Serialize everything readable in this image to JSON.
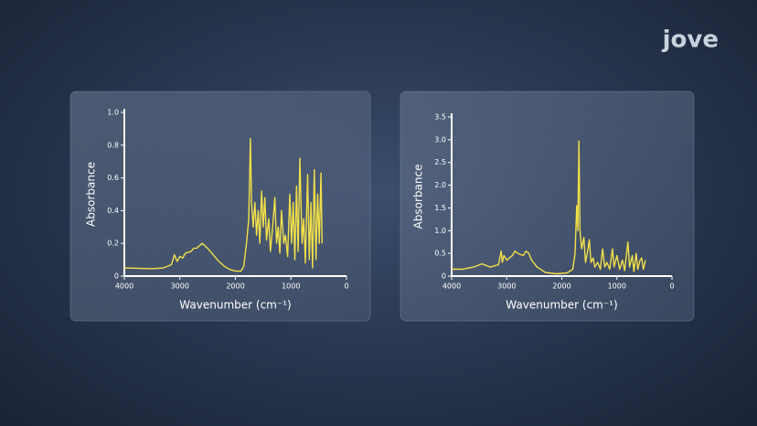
{
  "brand": "jove",
  "chart_data": [
    {
      "type": "line",
      "xlabel": "Wavenumber (cm⁻¹)",
      "ylabel": "Absorbance",
      "color": "#f2e04a",
      "xlim": [
        4000,
        0
      ],
      "xticks": [
        4000,
        3000,
        2000,
        1000,
        0
      ],
      "ylim": [
        0,
        1
      ],
      "yticks": [
        0,
        0.2,
        0.4,
        0.6,
        0.8,
        {
          "value": 1,
          "label": "1.0"
        }
      ],
      "x": [
        4000,
        3500,
        3300,
        3150,
        3100,
        3050,
        3000,
        2950,
        2900,
        2800,
        2750,
        2700,
        2600,
        2500,
        2400,
        2300,
        2200,
        2100,
        2000,
        1900,
        1850,
        1800,
        1760,
        1730,
        1710,
        1680,
        1650,
        1620,
        1590,
        1560,
        1530,
        1500,
        1470,
        1440,
        1400,
        1370,
        1330,
        1290,
        1260,
        1230,
        1200,
        1170,
        1130,
        1100,
        1060,
        1020,
        990,
        960,
        930,
        900,
        870,
        840,
        800,
        770,
        740,
        700,
        670,
        640,
        610,
        580,
        550,
        520,
        490,
        460,
        440
      ],
      "values": [
        0.05,
        0.045,
        0.05,
        0.07,
        0.13,
        0.09,
        0.12,
        0.11,
        0.14,
        0.15,
        0.17,
        0.17,
        0.2,
        0.17,
        0.13,
        0.09,
        0.06,
        0.04,
        0.03,
        0.03,
        0.06,
        0.2,
        0.35,
        0.84,
        0.45,
        0.3,
        0.45,
        0.25,
        0.4,
        0.2,
        0.52,
        0.3,
        0.48,
        0.22,
        0.35,
        0.15,
        0.3,
        0.48,
        0.2,
        0.3,
        0.14,
        0.4,
        0.2,
        0.25,
        0.12,
        0.5,
        0.2,
        0.45,
        0.1,
        0.55,
        0.15,
        0.72,
        0.2,
        0.35,
        0.08,
        0.62,
        0.1,
        0.45,
        0.05,
        0.65,
        0.1,
        0.5,
        0.2,
        0.63,
        0.2
      ]
    },
    {
      "type": "line",
      "xlabel": "Wavenumber (cm⁻¹)",
      "ylabel": "Absorbance",
      "color": "#f2e04a",
      "xlim": [
        4000,
        0
      ],
      "xticks": [
        4000,
        3000,
        2000,
        1000,
        0
      ],
      "ylim": [
        0,
        3.5
      ],
      "yticks": [
        0,
        0.5,
        {
          "value": 1,
          "label": "1.0"
        },
        1.5,
        {
          "value": 2,
          "label": "2.0"
        },
        2.5,
        {
          "value": 3,
          "label": "3.0"
        },
        3.5
      ],
      "x": [
        4000,
        3800,
        3600,
        3450,
        3300,
        3150,
        3100,
        3080,
        3050,
        3000,
        2950,
        2900,
        2850,
        2800,
        2700,
        2650,
        2600,
        2550,
        2450,
        2300,
        2100,
        1900,
        1800,
        1760,
        1730,
        1710,
        1690,
        1670,
        1640,
        1600,
        1570,
        1530,
        1500,
        1470,
        1430,
        1400,
        1350,
        1300,
        1260,
        1220,
        1180,
        1130,
        1080,
        1050,
        1000,
        950,
        900,
        860,
        800,
        770,
        720,
        690,
        650,
        620,
        580,
        550,
        520,
        480
      ],
      "values": [
        0.15,
        0.15,
        0.2,
        0.27,
        0.2,
        0.25,
        0.55,
        0.3,
        0.45,
        0.35,
        0.4,
        0.45,
        0.55,
        0.5,
        0.45,
        0.55,
        0.5,
        0.35,
        0.2,
        0.08,
        0.05,
        0.07,
        0.15,
        0.5,
        1.55,
        1.0,
        2.97,
        1.0,
        0.6,
        0.85,
        0.3,
        0.55,
        0.8,
        0.3,
        0.4,
        0.2,
        0.3,
        0.15,
        0.6,
        0.2,
        0.3,
        0.15,
        0.6,
        0.2,
        0.45,
        0.15,
        0.35,
        0.12,
        0.75,
        0.2,
        0.45,
        0.1,
        0.5,
        0.15,
        0.35,
        0.4,
        0.15,
        0.35
      ]
    }
  ]
}
